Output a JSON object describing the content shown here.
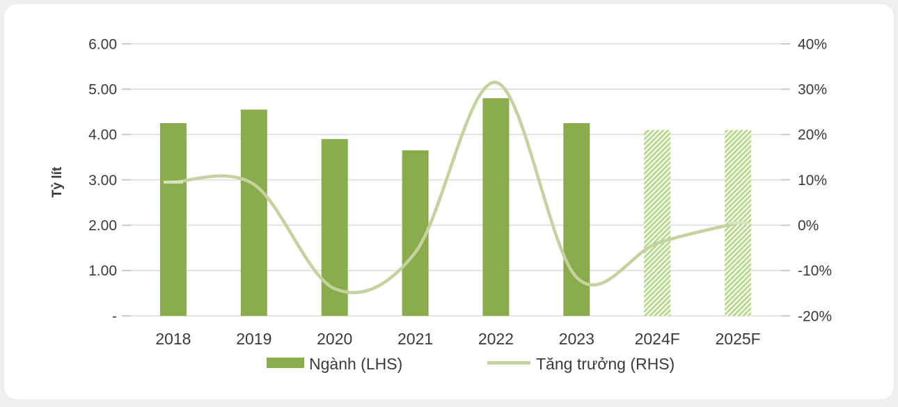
{
  "page": {
    "background_color": "#efefef",
    "card_background_color": "#ffffff"
  },
  "chart_data": {
    "type": "bar+line",
    "categories": [
      "2018",
      "2019",
      "2020",
      "2021",
      "2022",
      "2023",
      "2024F",
      "2025F"
    ],
    "series": [
      {
        "name": "Ngành (LHS)",
        "type": "bar",
        "axis": "left",
        "values": [
          4.25,
          4.55,
          3.9,
          3.65,
          4.8,
          4.25,
          4.1,
          4.1
        ],
        "forecast_flags": [
          false,
          false,
          false,
          false,
          false,
          false,
          true,
          true
        ]
      },
      {
        "name": "Tăng trưởng (RHS)",
        "type": "line",
        "axis": "right",
        "values": [
          9.5,
          9.0,
          -14.0,
          -6.0,
          31.5,
          -11.5,
          -4.0,
          0.5
        ]
      }
    ],
    "left_axis": {
      "title": "Tỷ lít",
      "min": 0,
      "max": 6,
      "tick_labels": [
        "6.00",
        "5.00",
        "4.00",
        "3.00",
        "2.00",
        "1.00",
        "-"
      ]
    },
    "right_axis": {
      "min": -20,
      "max": 40,
      "tick_labels": [
        "40%",
        "30%",
        "20%",
        "10%",
        "0%",
        "-10%",
        "-20%"
      ]
    },
    "legend_position": "bottom",
    "grid": "horizontal",
    "colors": {
      "bar_solid": "#8BAC4B",
      "bar_forecast_stripe": "#AED380",
      "bar_forecast_bg": "#F3F9EA",
      "line": "#C4D2A0",
      "line_end_marker": "#D9E3BC",
      "gridline": "#DCDCDC",
      "tick_mark": "#C4C4C4",
      "text": "#3A3A3A"
    }
  }
}
